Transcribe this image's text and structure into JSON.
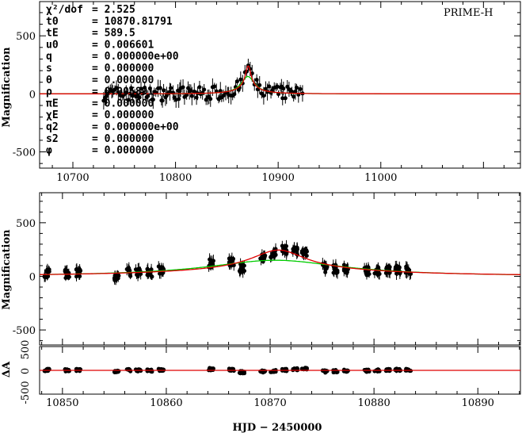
{
  "chart_data": {
    "type": "scatter",
    "dataset_label": "PRIME-H",
    "ylabel": "Magnification",
    "residual_ylabel": "ΔA",
    "xlabel": "HJD − 2450000",
    "parameters": [
      {
        "name": "χ²/dof",
        "value": "= 2.525"
      },
      {
        "name": "t0",
        "value": "= 10870.81791"
      },
      {
        "name": "tE",
        "value": "= 589.5"
      },
      {
        "name": "u0",
        "value": "= 0.006601"
      },
      {
        "name": "q",
        "value": "= 0.000000e+00"
      },
      {
        "name": "s",
        "value": "= 0.000000"
      },
      {
        "name": "θ",
        "value": "= 0.000000"
      },
      {
        "name": "ρ",
        "value": "= 0.005891"
      },
      {
        "name": "πE",
        "value": "= 0.000000"
      },
      {
        "name": "χE",
        "value": "= 0.000000"
      },
      {
        "name": "q2",
        "value": "= 0.000000e+00"
      },
      {
        "name": "s2",
        "value": "= 0.000000"
      },
      {
        "name": "φ",
        "value": "= 0.000000"
      }
    ],
    "top_panel": {
      "xlim": [
        10667.6,
        11136
      ],
      "ylim": [
        -640,
        795
      ],
      "xticks": [
        10700,
        10800,
        10900,
        11000
      ],
      "yticks": [
        500,
        0,
        -500
      ]
    },
    "zoom_panel": {
      "xlim": [
        10847.8,
        10894.1
      ],
      "ylim": [
        -640,
        780
      ],
      "xticks": [
        10850,
        10860,
        10870,
        10880,
        10890
      ],
      "yticks": [
        500,
        0,
        -500
      ]
    },
    "residual_panel": {
      "ylim": [
        -700,
        700
      ],
      "yticks": [
        "500",
        "0",
        "-500"
      ]
    },
    "model_red": {
      "peak_time": 10870.8,
      "amplitude": 185,
      "width_days": 3.2,
      "wing": 60,
      "wing_width": 12
    },
    "model_green": {
      "peak_time": 10870.5,
      "amplitude": 0,
      "width_days": 3.2,
      "wing": 150,
      "wing_width": 8
    },
    "clusters": [
      {
        "t": 10848.5,
        "offset": 10
      },
      {
        "t": 10850.5,
        "offset": 0
      },
      {
        "t": 10851.5,
        "offset": 15
      },
      {
        "t": 10855.2,
        "offset": -30
      },
      {
        "t": 10856.3,
        "offset": 5
      },
      {
        "t": 10857.3,
        "offset": 0
      },
      {
        "t": 10858.4,
        "offset": -10
      },
      {
        "t": 10859.5,
        "offset": 15
      },
      {
        "t": 10864.3,
        "offset": 40
      },
      {
        "t": 10866.3,
        "offset": 20
      },
      {
        "t": 10867.3,
        "offset": -60
      },
      {
        "t": 10869.3,
        "offset": -40
      },
      {
        "t": 10870.3,
        "offset": -20
      },
      {
        "t": 10871.4,
        "offset": 10
      },
      {
        "t": 10872.4,
        "offset": 40
      },
      {
        "t": 10873.3,
        "offset": 60
      },
      {
        "t": 10875.3,
        "offset": -40
      },
      {
        "t": 10876.3,
        "offset": -30
      },
      {
        "t": 10877.3,
        "offset": -10
      },
      {
        "t": 10879.3,
        "offset": -15
      },
      {
        "t": 10880.3,
        "offset": 0
      },
      {
        "t": 10881.3,
        "offset": 10
      },
      {
        "t": 10882.3,
        "offset": 20
      },
      {
        "t": 10883.3,
        "offset": 15
      }
    ],
    "colors": {
      "red": "#e00000",
      "green": "#00cc00",
      "points": "#000000"
    }
  }
}
